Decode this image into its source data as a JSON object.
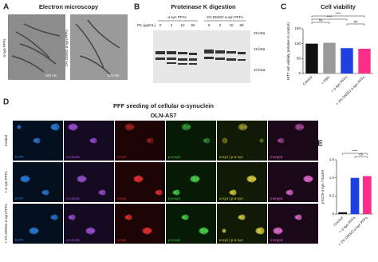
{
  "panel_a": {
    "label": "A",
    "title": "Electron microscopy",
    "images": [
      {
        "label": "α-syn PFFs",
        "scale": "100 nm"
      },
      {
        "label": "2% DMSO α-syn PFFs",
        "scale": "100 nm"
      }
    ]
  },
  "panel_b": {
    "label": "B",
    "title": "Proteinase K digestion",
    "groups": [
      "α-syn PFFs",
      "2% DMSO α-syn PFFs"
    ],
    "pk_label": "PK (µg/mL)",
    "lanes": [
      0,
      2,
      10,
      50,
      0,
      2,
      10,
      50
    ],
    "markers": [
      "25 kDa",
      "15 kDa",
      "10 kDa"
    ]
  },
  "panel_d": {
    "label": "D",
    "title": "PFF seeding of cellular α-synuclein",
    "subtitle": "OLN-AS7",
    "rows": [
      "Control",
      "+ α-syn PFFs",
      "+ 2% DMSO α-syn PFFs"
    ],
    "columns": [
      "DAPI",
      "α-tubulin",
      "α-syn",
      "p-α-syn",
      "α-syn | p-α-syn",
      "merged"
    ]
  },
  "chart_data": [
    {
      "type": "bar",
      "label": "C",
      "title": "Cell viability",
      "y_label": "MTT cell viability (relative to control)",
      "categories": [
        "Control",
        "+ PBS",
        "+ α-syn PFFs",
        "+ 2% DMSO α-syn PFFs"
      ],
      "values": [
        100,
        103,
        85,
        83
      ],
      "colors": [
        "#111111",
        "#9a9a9a",
        "#1f3fe0",
        "#ff2d8a"
      ],
      "ylim": [
        0,
        150
      ],
      "yticks": [
        0,
        50,
        100,
        150
      ],
      "annotations": [
        "****",
        "ns",
        "****",
        "ns"
      ]
    },
    {
      "type": "bar",
      "label": "E",
      "y_label": "pS129 α-syn / Nuclei",
      "categories": [
        "Control",
        "+ α-syn PFFs",
        "+ 2% DMSO α-syn PFFs"
      ],
      "values": [
        0.05,
        1.0,
        1.05
      ],
      "colors": [
        "#111111",
        "#1f3fe0",
        "#ff2d8a"
      ],
      "ylim": [
        0,
        1.5
      ],
      "yticks": [
        0,
        0.5,
        {
          "value": 1,
          "label": "1.0"
        },
        1.5
      ],
      "annotations": [
        "****",
        "ns"
      ]
    }
  ]
}
